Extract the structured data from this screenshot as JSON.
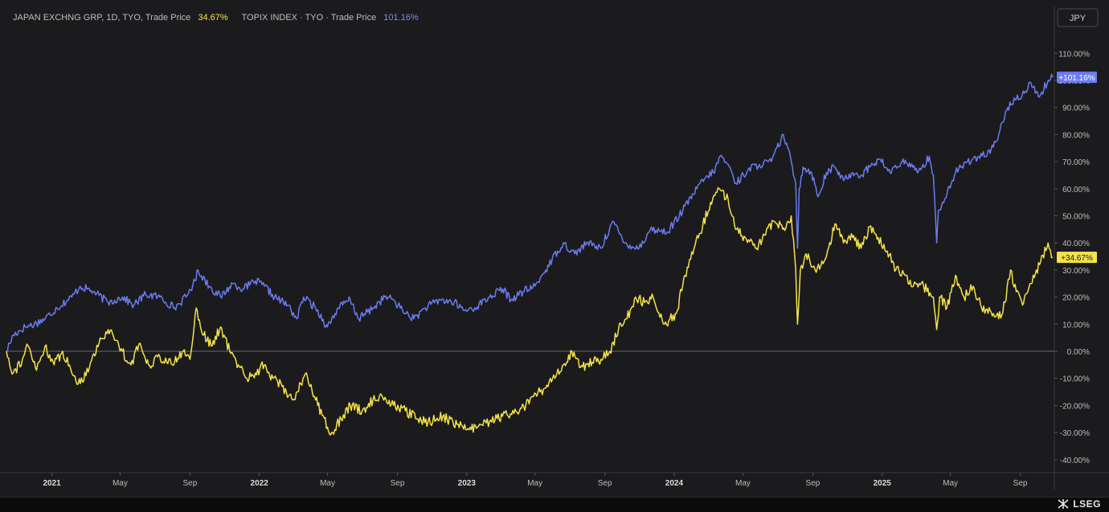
{
  "legend": {
    "s1_label": "JAPAN EXCHNG GRP, 1D, TYO, Trade Price",
    "s1_value": "34.67%",
    "s2_label": "TOPIX INDEX · TYO · Trade Price",
    "s2_value": "101.16%"
  },
  "currency": "JPY",
  "brand": "LSEG",
  "colors": {
    "background": "#1b1b1d",
    "topix": "#6a7bf0",
    "jpx": "#f4e34a",
    "grid_zero": "#6b6b6b",
    "text": "#bdbdbd"
  },
  "chart_data": {
    "type": "line",
    "title": "",
    "xlabel": "",
    "ylabel": "",
    "yaxis_unit": "%",
    "ylim": [
      -45,
      120
    ],
    "yticks": [
      110,
      100,
      90,
      80,
      70,
      60,
      50,
      40,
      30,
      20,
      10,
      0,
      -10,
      -20,
      -30,
      -40
    ],
    "ytick_labels": [
      "110.00%",
      "100.00%",
      "90.00%",
      "80.00%",
      "70.00%",
      "60.00%",
      "50.00%",
      "40.00%",
      "30.00%",
      "20.00%",
      "10.00%",
      "0.00%",
      "-10.00%",
      "-20.00%",
      "-30.00%",
      "-40.00%"
    ],
    "xlim": [
      "2020-10-13",
      "2025-10-31"
    ],
    "xticks": [
      {
        "date": "2021-01-01",
        "label": "2021",
        "major": true
      },
      {
        "date": "2021-05-01",
        "label": "May",
        "major": false
      },
      {
        "date": "2021-09-01",
        "label": "Sep",
        "major": false
      },
      {
        "date": "2022-01-01",
        "label": "2022",
        "major": true
      },
      {
        "date": "2022-05-01",
        "label": "May",
        "major": false
      },
      {
        "date": "2022-09-01",
        "label": "Sep",
        "major": false
      },
      {
        "date": "2023-01-01",
        "label": "2023",
        "major": true
      },
      {
        "date": "2023-05-01",
        "label": "May",
        "major": false
      },
      {
        "date": "2023-09-01",
        "label": "Sep",
        "major": false
      },
      {
        "date": "2024-01-01",
        "label": "2024",
        "major": true
      },
      {
        "date": "2024-05-01",
        "label": "May",
        "major": false
      },
      {
        "date": "2024-09-01",
        "label": "Sep",
        "major": false
      },
      {
        "date": "2025-01-01",
        "label": "2025",
        "major": true
      },
      {
        "date": "2025-05-01",
        "label": "May",
        "major": false
      },
      {
        "date": "2025-09-01",
        "label": "Sep",
        "major": false
      }
    ],
    "series": [
      {
        "key": "topix",
        "badge": "+101.16%",
        "last": 101.16,
        "points": [
          [
            "2020-10-13",
            0
          ],
          [
            "2020-10-25",
            6
          ],
          [
            "2020-11-15",
            9
          ],
          [
            "2020-12-01",
            10
          ],
          [
            "2020-12-20",
            12
          ],
          [
            "2021-01-10",
            16
          ],
          [
            "2021-02-05",
            20
          ],
          [
            "2021-02-20",
            24
          ],
          [
            "2021-03-15",
            22
          ],
          [
            "2021-04-10",
            18
          ],
          [
            "2021-05-05",
            20
          ],
          [
            "2021-05-25",
            17
          ],
          [
            "2021-06-15",
            21
          ],
          [
            "2021-07-10",
            20
          ],
          [
            "2021-08-05",
            16
          ],
          [
            "2021-08-25",
            20
          ],
          [
            "2021-09-10",
            26
          ],
          [
            "2021-09-15",
            30
          ],
          [
            "2021-10-05",
            24
          ],
          [
            "2021-10-25",
            20
          ],
          [
            "2021-11-15",
            25
          ],
          [
            "2021-12-05",
            23
          ],
          [
            "2021-12-25",
            26
          ],
          [
            "2022-01-10",
            24
          ],
          [
            "2022-01-28",
            20
          ],
          [
            "2022-02-20",
            17
          ],
          [
            "2022-03-08",
            12
          ],
          [
            "2022-03-20",
            20
          ],
          [
            "2022-04-10",
            16
          ],
          [
            "2022-05-01",
            9
          ],
          [
            "2022-05-20",
            16
          ],
          [
            "2022-06-10",
            19
          ],
          [
            "2022-06-25",
            12
          ],
          [
            "2022-07-20",
            16
          ],
          [
            "2022-08-10",
            20
          ],
          [
            "2022-08-25",
            19
          ],
          [
            "2022-09-10",
            15
          ],
          [
            "2022-09-30",
            12
          ],
          [
            "2022-10-20",
            16
          ],
          [
            "2022-11-15",
            19
          ],
          [
            "2022-12-10",
            18
          ],
          [
            "2022-12-28",
            15
          ],
          [
            "2023-01-15",
            16
          ],
          [
            "2023-02-10",
            20
          ],
          [
            "2023-03-05",
            23
          ],
          [
            "2023-03-20",
            19
          ],
          [
            "2023-04-10",
            22
          ],
          [
            "2023-05-01",
            24
          ],
          [
            "2023-05-20",
            30
          ],
          [
            "2023-06-10",
            37
          ],
          [
            "2023-06-20",
            40
          ],
          [
            "2023-07-10",
            36
          ],
          [
            "2023-07-31",
            40
          ],
          [
            "2023-08-25",
            38
          ],
          [
            "2023-09-15",
            48
          ],
          [
            "2023-10-05",
            40
          ],
          [
            "2023-10-31",
            38
          ],
          [
            "2023-11-20",
            45
          ],
          [
            "2023-12-20",
            44
          ],
          [
            "2024-01-10",
            50
          ],
          [
            "2024-02-10",
            60
          ],
          [
            "2024-02-25",
            64
          ],
          [
            "2024-03-10",
            66
          ],
          [
            "2024-03-22",
            72
          ],
          [
            "2024-04-05",
            69
          ],
          [
            "2024-04-19",
            62
          ],
          [
            "2024-05-10",
            67
          ],
          [
            "2024-05-30",
            69
          ],
          [
            "2024-06-20",
            70
          ],
          [
            "2024-07-11",
            80
          ],
          [
            "2024-07-25",
            70
          ],
          [
            "2024-08-02",
            62
          ],
          [
            "2024-08-05",
            38
          ],
          [
            "2024-08-08",
            60
          ],
          [
            "2024-08-15",
            68
          ],
          [
            "2024-08-30",
            66
          ],
          [
            "2024-09-10",
            57
          ],
          [
            "2024-09-25",
            66
          ],
          [
            "2024-10-10",
            68
          ],
          [
            "2024-10-25",
            63
          ],
          [
            "2024-11-10",
            66
          ],
          [
            "2024-11-25",
            65
          ],
          [
            "2024-12-10",
            68
          ],
          [
            "2024-12-27",
            71
          ],
          [
            "2025-01-15",
            66
          ],
          [
            "2025-02-05",
            70
          ],
          [
            "2025-02-20",
            68
          ],
          [
            "2025-03-10",
            67
          ],
          [
            "2025-03-25",
            72
          ],
          [
            "2025-04-01",
            65
          ],
          [
            "2025-04-07",
            40
          ],
          [
            "2025-04-10",
            52
          ],
          [
            "2025-04-25",
            58
          ],
          [
            "2025-05-10",
            66
          ],
          [
            "2025-05-31",
            70
          ],
          [
            "2025-06-20",
            72
          ],
          [
            "2025-07-10",
            73
          ],
          [
            "2025-07-25",
            80
          ],
          [
            "2025-08-10",
            90
          ],
          [
            "2025-08-25",
            93
          ],
          [
            "2025-09-10",
            96
          ],
          [
            "2025-09-20",
            99
          ],
          [
            "2025-10-05",
            94
          ],
          [
            "2025-10-20",
            100
          ],
          [
            "2025-10-28",
            101.16
          ]
        ]
      },
      {
        "key": "jpx",
        "badge": "+34.67%",
        "last": 34.67,
        "points": [
          [
            "2020-10-13",
            0
          ],
          [
            "2020-10-25",
            -8
          ],
          [
            "2020-11-10",
            -3
          ],
          [
            "2020-11-20",
            2
          ],
          [
            "2020-12-05",
            -7
          ],
          [
            "2020-12-20",
            2
          ],
          [
            "2021-01-05",
            -5
          ],
          [
            "2021-01-20",
            0
          ],
          [
            "2021-02-05",
            -8
          ],
          [
            "2021-02-20",
            -12
          ],
          [
            "2021-03-10",
            -4
          ],
          [
            "2021-03-25",
            3
          ],
          [
            "2021-04-10",
            8
          ],
          [
            "2021-04-25",
            4
          ],
          [
            "2021-05-05",
            0
          ],
          [
            "2021-05-20",
            -5
          ],
          [
            "2021-06-05",
            3
          ],
          [
            "2021-06-20",
            -5
          ],
          [
            "2021-07-10",
            -2
          ],
          [
            "2021-08-01",
            -5
          ],
          [
            "2021-08-20",
            0
          ],
          [
            "2021-09-01",
            -3
          ],
          [
            "2021-09-12",
            16
          ],
          [
            "2021-09-25",
            6
          ],
          [
            "2021-10-10",
            2
          ],
          [
            "2021-10-25",
            9
          ],
          [
            "2021-11-10",
            0
          ],
          [
            "2021-11-25",
            -5
          ],
          [
            "2021-12-10",
            -10
          ],
          [
            "2021-12-25",
            -8
          ],
          [
            "2022-01-10",
            -5
          ],
          [
            "2022-01-25",
            -10
          ],
          [
            "2022-02-10",
            -13
          ],
          [
            "2022-03-01",
            -18
          ],
          [
            "2022-03-15",
            -12
          ],
          [
            "2022-03-25",
            -8
          ],
          [
            "2022-04-10",
            -18
          ],
          [
            "2022-05-01",
            -28
          ],
          [
            "2022-05-10",
            -30
          ],
          [
            "2022-05-25",
            -25
          ],
          [
            "2022-06-10",
            -20
          ],
          [
            "2022-07-01",
            -22
          ],
          [
            "2022-07-20",
            -18
          ],
          [
            "2022-08-10",
            -17
          ],
          [
            "2022-08-25",
            -20
          ],
          [
            "2022-09-15",
            -22
          ],
          [
            "2022-10-05",
            -25
          ],
          [
            "2022-10-25",
            -26
          ],
          [
            "2022-11-20",
            -24
          ],
          [
            "2022-12-15",
            -27
          ],
          [
            "2023-01-05",
            -29
          ],
          [
            "2023-01-20",
            -28
          ],
          [
            "2023-02-10",
            -26
          ],
          [
            "2023-03-05",
            -24
          ],
          [
            "2023-03-25",
            -23
          ],
          [
            "2023-04-15",
            -20
          ],
          [
            "2023-05-10",
            -15
          ],
          [
            "2023-06-05",
            -10
          ],
          [
            "2023-06-20",
            -5
          ],
          [
            "2023-07-05",
            0
          ],
          [
            "2023-07-20",
            -6
          ],
          [
            "2023-08-10",
            -4
          ],
          [
            "2023-08-25",
            -3
          ],
          [
            "2023-09-10",
            0
          ],
          [
            "2023-09-25",
            8
          ],
          [
            "2023-10-10",
            12
          ],
          [
            "2023-10-25",
            20
          ],
          [
            "2023-11-10",
            18
          ],
          [
            "2023-11-25",
            20
          ],
          [
            "2023-12-15",
            10
          ],
          [
            "2024-01-05",
            14
          ],
          [
            "2024-01-20",
            28
          ],
          [
            "2024-02-05",
            38
          ],
          [
            "2024-02-20",
            46
          ],
          [
            "2024-03-05",
            55
          ],
          [
            "2024-03-20",
            60
          ],
          [
            "2024-04-05",
            56
          ],
          [
            "2024-04-20",
            45
          ],
          [
            "2024-05-05",
            42
          ],
          [
            "2024-05-25",
            38
          ],
          [
            "2024-06-10",
            43
          ],
          [
            "2024-06-25",
            48
          ],
          [
            "2024-07-10",
            45
          ],
          [
            "2024-07-25",
            50
          ],
          [
            "2024-08-02",
            30
          ],
          [
            "2024-08-05",
            10
          ],
          [
            "2024-08-10",
            30
          ],
          [
            "2024-08-20",
            36
          ],
          [
            "2024-09-05",
            30
          ],
          [
            "2024-09-25",
            35
          ],
          [
            "2024-10-10",
            47
          ],
          [
            "2024-10-25",
            40
          ],
          [
            "2024-11-10",
            42
          ],
          [
            "2024-11-25",
            38
          ],
          [
            "2024-12-10",
            46
          ],
          [
            "2024-12-25",
            42
          ],
          [
            "2025-01-10",
            37
          ],
          [
            "2025-01-25",
            30
          ],
          [
            "2025-02-10",
            28
          ],
          [
            "2025-02-25",
            24
          ],
          [
            "2025-03-15",
            24
          ],
          [
            "2025-04-01",
            20
          ],
          [
            "2025-04-07",
            8
          ],
          [
            "2025-04-12",
            20
          ],
          [
            "2025-04-25",
            16
          ],
          [
            "2025-05-10",
            28
          ],
          [
            "2025-05-25",
            20
          ],
          [
            "2025-06-10",
            24
          ],
          [
            "2025-06-25",
            16
          ],
          [
            "2025-07-10",
            15
          ],
          [
            "2025-07-25",
            12
          ],
          [
            "2025-08-05",
            18
          ],
          [
            "2025-08-15",
            30
          ],
          [
            "2025-08-25",
            22
          ],
          [
            "2025-09-05",
            17
          ],
          [
            "2025-09-20",
            25
          ],
          [
            "2025-10-05",
            32
          ],
          [
            "2025-10-20",
            40
          ],
          [
            "2025-10-28",
            34.67
          ]
        ]
      }
    ]
  }
}
